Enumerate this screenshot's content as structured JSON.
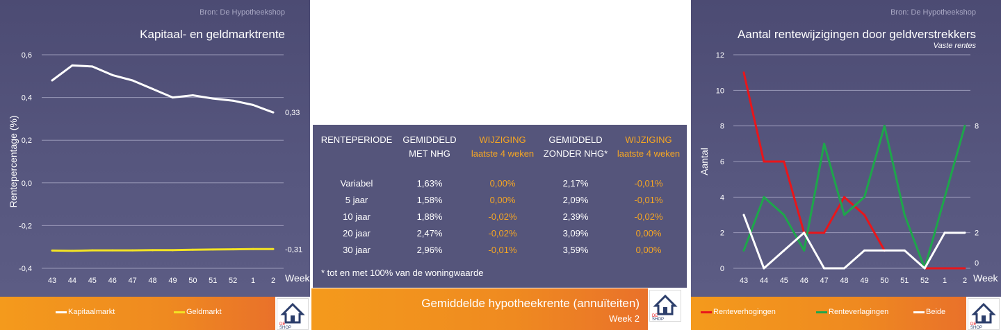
{
  "left_chart": {
    "source": "Bron: De Hypotheekshop",
    "title": "Kapitaal- en geldmarktrente",
    "chart_data": {
      "type": "line",
      "title": "Kapitaal- en geldmarktrente",
      "xlabel": "Week",
      "ylabel": "Rentepercentage (%)",
      "categories": [
        "43",
        "44",
        "45",
        "46",
        "47",
        "48",
        "49",
        "50",
        "51",
        "52",
        "1",
        "2"
      ],
      "ylim": [
        -0.4,
        0.6
      ],
      "yticks": [
        "-0,4",
        "-0,2",
        "0,0",
        "0,2",
        "0,4",
        "0,6"
      ],
      "grid": true,
      "legend_position": "bottom",
      "series": [
        {
          "name": "Kapitaalmarkt",
          "color": "#ffffff",
          "values": [
            0.48,
            0.55,
            0.545,
            0.505,
            0.48,
            0.44,
            0.4,
            0.41,
            0.395,
            0.385,
            0.365,
            0.33
          ],
          "end_label": "0,33"
        },
        {
          "name": "Geldmarkt",
          "color": "#f3e324",
          "values": [
            -0.317,
            -0.318,
            -0.316,
            -0.316,
            -0.316,
            -0.315,
            -0.315,
            -0.313,
            -0.312,
            -0.311,
            -0.31,
            -0.31
          ],
          "end_label": "-0,31"
        }
      ]
    },
    "legend": [
      {
        "label": "Kapitaalmarkt",
        "color": "#ffffff"
      },
      {
        "label": "Geldmarkt",
        "color": "#f3e324"
      }
    ]
  },
  "table": {
    "headers": [
      {
        "line1": "RENTEPERIODE",
        "line2": "",
        "accent": false
      },
      {
        "line1": "GEMIDDELD",
        "line2": "MET NHG",
        "accent": false
      },
      {
        "line1": "WIJZIGING",
        "line2": "laatste 4 weken",
        "accent": true
      },
      {
        "line1": "GEMIDDELD",
        "line2": "ZONDER NHG*",
        "accent": false
      },
      {
        "line1": "WIJZIGING",
        "line2": "laatste 4 weken",
        "accent": true
      }
    ],
    "rows": [
      [
        "Variabel",
        "1,63%",
        "0,00%",
        "2,17%",
        "-0,01%"
      ],
      [
        "5 jaar",
        "1,58%",
        "0,00%",
        "2,09%",
        "-0,01%"
      ],
      [
        "10 jaar",
        "1,88%",
        "-0,02%",
        "2,39%",
        "-0,02%"
      ],
      [
        "20 jaar",
        "2,47%",
        "-0,02%",
        "3,09%",
        "0,00%"
      ],
      [
        "30 jaar",
        "2,96%",
        "-0,01%",
        "3,59%",
        "0,00%"
      ]
    ],
    "note": "* tot en met 100% van de woningwaarde",
    "footer_title": "Gemiddelde hypotheekrente (annuïteiten)",
    "footer_sub": "Week 2"
  },
  "right_chart": {
    "source": "Bron: De Hypotheekshop",
    "title": "Aantal rentewijzigingen door geldverstrekkers",
    "subtitle": "Vaste rentes",
    "chart_data": {
      "type": "line",
      "title": "Aantal rentewijzigingen door geldverstrekkers",
      "subtitle": "Vaste rentes",
      "xlabel": "Week",
      "ylabel": "Aantal",
      "categories": [
        "43",
        "44",
        "45",
        "46",
        "47",
        "48",
        "49",
        "50",
        "51",
        "52",
        "1",
        "2"
      ],
      "ylim": [
        0,
        12
      ],
      "yticks": [
        "0",
        "2",
        "4",
        "6",
        "8",
        "10",
        "12"
      ],
      "grid": true,
      "legend_position": "bottom",
      "series": [
        {
          "name": "Renteverhogingen",
          "color": "#e8161b",
          "values": [
            11,
            6,
            6,
            2,
            2,
            4,
            3,
            1,
            null,
            0,
            0,
            0
          ]
        },
        {
          "name": "Renteverlagingen",
          "color": "#1ea64b",
          "values": [
            1,
            4,
            3,
            1,
            7,
            3,
            4,
            8,
            3,
            0,
            4,
            8
          ],
          "end_label": "8"
        },
        {
          "name": "Beide",
          "color": "#ffffff",
          "values": [
            3,
            0,
            1,
            2,
            0,
            0,
            1,
            1,
            1,
            0,
            2,
            2
          ],
          "end_label": "2"
        }
      ],
      "extra_labels": [
        "0"
      ]
    },
    "legend": [
      {
        "label": "Renteverhogingen",
        "color": "#e8161b"
      },
      {
        "label": "Renteverlagingen",
        "color": "#1ea64b"
      },
      {
        "label": "Beide",
        "color": "#ffffff"
      }
    ]
  }
}
